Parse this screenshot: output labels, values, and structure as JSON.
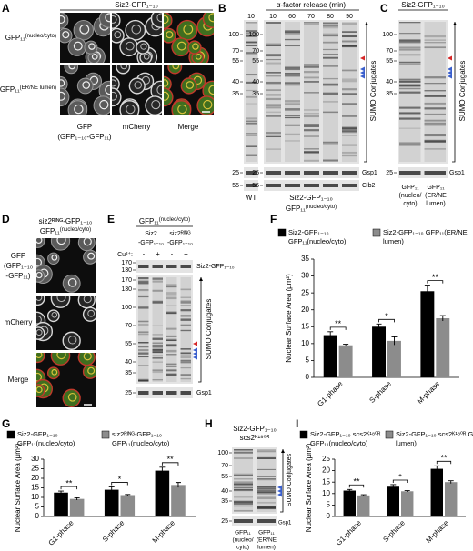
{
  "panel_a": {
    "label": "A",
    "header": "Siz2-GFP₁₋₁₀",
    "rows": [
      {
        "name": "GFP₁₁",
        "sup": "(nucleo/cyto)"
      },
      {
        "name": "GFP₁₁",
        "sup": "(ER/NE lumen)"
      }
    ],
    "columns": [
      "GFP",
      "mCherry",
      "Merge"
    ],
    "column_note": "(GFP₁₋₁₀-GFP₁₁)"
  },
  "panel_b": {
    "label": "B",
    "header": "α-factor release (min)",
    "wt_lane": "10",
    "lanes": [
      "10",
      "60",
      "70",
      "80",
      "90"
    ],
    "wt_markers": [
      "100",
      "70",
      "55",
      "40",
      "35",
      "25",
      "55"
    ],
    "markers": [
      "100",
      "70",
      "55",
      "40",
      "35",
      "25",
      "55"
    ],
    "bands": [
      "SUMO Conjugates",
      "Gsp1",
      "Clb2"
    ],
    "wt": "WT",
    "strain": "Siz2-GFP₁₋₁₀",
    "strain_tag": "GFP₁₁",
    "strain_tag_sup": "(nucleo/cyto)"
  },
  "panel_c": {
    "label": "C",
    "header": "Siz2-GFP₁₋₁₀",
    "markers": [
      "100",
      "70",
      "55",
      "40",
      "35",
      "25"
    ],
    "bands": [
      "SUMO Conjugates",
      "Gsp1"
    ],
    "lanes": [
      [
        "GFP₁₁",
        "(nucleo/",
        "cyto)"
      ],
      [
        "GFP₁₁",
        "(ER/NE",
        "lumen)"
      ]
    ]
  },
  "panel_d": {
    "label": "D",
    "header": "siz2ᴿᴵᴺᴳ-GFP₁₋₁₀",
    "subheader": "GFP₁₁",
    "subheader_sup": "(nucleo/cyto)",
    "rows": [
      [
        "GFP",
        "(GFP₁₋₁₀",
        "-GFP₁₁)"
      ],
      [
        "mCherry"
      ],
      [
        "Merge"
      ]
    ]
  },
  "panel_e": {
    "label": "E",
    "header": "GFP₁₁",
    "header_sup": "(nucleo/cyto)",
    "groups": [
      [
        "Siz2",
        "-GFP₁₋₁₀"
      ],
      [
        "siz2ᴿᴵᴺᴳ",
        "-GFP₁₋₁₀"
      ]
    ],
    "treatment": "Cu²⁺:",
    "signs": [
      "-",
      "+",
      "-",
      "+"
    ],
    "top_markers": [
      "170",
      "130"
    ],
    "markers": [
      "170",
      "130",
      "100",
      "70",
      "55",
      "40",
      "35",
      "25"
    ],
    "bands": [
      "Siz2-GFP₁₋₁₀",
      "SUMO Conjugates",
      "Gsp1"
    ]
  },
  "panel_h": {
    "label": "H",
    "header": [
      "Siz2-GFP₁₋₁₀",
      "scs2ᴷ¹⁸⁰ᴿ"
    ],
    "markers": [
      "100",
      "70",
      "55",
      "40",
      "35",
      "25"
    ],
    "bands": [
      "SUMO Conjugates",
      "Gsp1"
    ],
    "lanes": [
      [
        "GFP₁₁",
        "(nucleo/",
        "cyto)"
      ],
      [
        "GFP₁₁",
        "(ER/NE",
        "lumen)"
      ]
    ]
  },
  "chart_data": [
    {
      "type": "bar",
      "label": "F",
      "y_label": "Nuclear Surface Area (µm²)",
      "categories": [
        "G1-phase",
        "S-phase",
        "M-phase"
      ],
      "series": [
        {
          "name": "Siz2-GFP₁₋₁₀ GFP₁₁(nucleo/cyto)",
          "color": "#000000",
          "values": [
            12.5,
            15,
            25.5
          ],
          "errors": [
            1,
            0.8,
            1.8
          ]
        },
        {
          "name": "Siz2-GFP₁₋₁₀ GFP₁₁(ER/NE lumen)",
          "color": "#8c8c8c",
          "values": [
            9.5,
            10.8,
            17.5
          ],
          "errors": [
            0.3,
            1.2,
            0.8
          ]
        }
      ],
      "ylim": [
        0,
        35
      ],
      "yticks": [
        0,
        5,
        10,
        15,
        20,
        25,
        30,
        35
      ],
      "significance": [
        "**",
        "*",
        "**"
      ]
    },
    {
      "type": "bar",
      "label": "G",
      "y_label": "Nuclear Surface Area (µm²)",
      "categories": [
        "G1-phase",
        "S-phase",
        "M-phase"
      ],
      "series": [
        {
          "name": "Siz2-GFP₁₋₁₀ GFP₁₁(nucleo/cyto)",
          "color": "#000000",
          "values": [
            12.5,
            14,
            24
          ],
          "errors": [
            0.8,
            1.5,
            1.8
          ]
        },
        {
          "name": "siz2ᴿᴵᴺᴳ-GFP₁₋₁₀ GFP₁₁(nucleo/cyto)",
          "color": "#8c8c8c",
          "values": [
            9.2,
            11.2,
            16.5
          ],
          "errors": [
            0.6,
            0.3,
            1.3
          ]
        }
      ],
      "ylim": [
        0,
        30
      ],
      "yticks": [
        0,
        5,
        10,
        15,
        20,
        25,
        30
      ],
      "significance": [
        "**",
        "*",
        "**"
      ]
    },
    {
      "type": "bar",
      "label": "I",
      "y_label": "Nuclear Surface Area (µm²)",
      "categories": [
        "G1-phase",
        "S-phase",
        "M-phase"
      ],
      "series": [
        {
          "name": "Siz2-GFP₁₋₁₀ scs2ᴷ¹⁸⁰ᴿ GFP₁₁(nucleo/cyto)",
          "color": "#000000",
          "values": [
            11.3,
            13,
            20.8
          ],
          "errors": [
            0.5,
            0.9,
            1.3
          ]
        },
        {
          "name": "Siz2-GFP₁₋₁₀ scs2ᴷ¹⁸⁰ᴿ GFP₁₁(ER/NE lumen)",
          "color": "#8c8c8c",
          "values": [
            9.2,
            11,
            15
          ],
          "errors": [
            0.3,
            0.3,
            0.6
          ]
        }
      ],
      "ylim": [
        0,
        25
      ],
      "yticks": [
        0,
        5,
        10,
        15,
        20,
        25
      ],
      "significance": [
        "**",
        "*",
        "**"
      ]
    }
  ]
}
